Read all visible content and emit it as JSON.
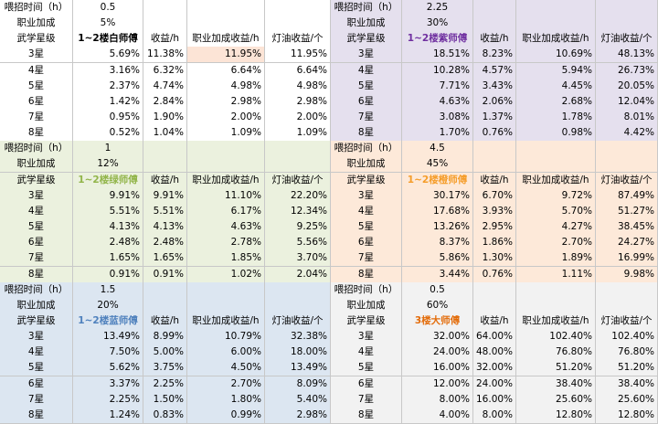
{
  "blocks": [
    {
      "time_label": "喂招时间（h）",
      "time": "0.5",
      "bonus_label": "职业加成",
      "bonus": "5%",
      "headers": [
        "武学星级",
        "1~2楼白师傅",
        "收益/h",
        "职业加成收益/h",
        "灯油收益/个"
      ],
      "rows": [
        [
          "3星",
          "5.69%",
          "11.38%",
          "11.95%",
          "11.95%"
        ],
        [
          "4星",
          "3.16%",
          "6.32%",
          "6.64%",
          "6.64%"
        ],
        [
          "5星",
          "2.37%",
          "4.74%",
          "4.98%",
          "4.98%"
        ],
        [
          "6星",
          "1.42%",
          "2.84%",
          "2.98%",
          "2.98%"
        ],
        [
          "7星",
          "0.95%",
          "1.90%",
          "2.00%",
          "2.00%"
        ],
        [
          "8星",
          "0.52%",
          "1.04%",
          "1.09%",
          "1.09%"
        ]
      ]
    },
    {
      "time_label": "喂招时间（h）",
      "time": "2.25",
      "bonus_label": "职业加成",
      "bonus": "30%",
      "headers": [
        "武学星级",
        "1~2楼紫师傅",
        "收益/h",
        "职业加成收益/h",
        "灯油收益/个"
      ],
      "rows": [
        [
          "3星",
          "18.51%",
          "8.23%",
          "10.69%",
          "48.13%"
        ],
        [
          "4星",
          "10.28%",
          "4.57%",
          "5.94%",
          "26.73%"
        ],
        [
          "5星",
          "7.71%",
          "3.43%",
          "4.45%",
          "20.05%"
        ],
        [
          "6星",
          "4.63%",
          "2.06%",
          "2.68%",
          "12.04%"
        ],
        [
          "7星",
          "3.08%",
          "1.37%",
          "1.78%",
          "8.01%"
        ],
        [
          "8星",
          "1.70%",
          "0.76%",
          "0.98%",
          "4.42%"
        ]
      ]
    },
    {
      "time_label": "喂招时间（h）",
      "time": "1",
      "bonus_label": "职业加成",
      "bonus": "12%",
      "headers": [
        "武学星级",
        "1~2楼绿师傅",
        "收益/h",
        "职业加成收益/h",
        "灯油收益/个"
      ],
      "rows": [
        [
          "3星",
          "9.91%",
          "9.91%",
          "11.10%",
          "22.20%"
        ],
        [
          "4星",
          "5.51%",
          "5.51%",
          "6.17%",
          "12.34%"
        ],
        [
          "5星",
          "4.13%",
          "4.13%",
          "4.63%",
          "9.25%"
        ],
        [
          "6星",
          "2.48%",
          "2.48%",
          "2.78%",
          "5.56%"
        ],
        [
          "7星",
          "1.65%",
          "1.65%",
          "1.85%",
          "3.70%"
        ],
        [
          "8星",
          "0.91%",
          "0.91%",
          "1.02%",
          "2.04%"
        ]
      ]
    },
    {
      "time_label": "喂招时间（h）",
      "time": "4.5",
      "bonus_label": "职业加成",
      "bonus": "45%",
      "headers": [
        "武学星级",
        "1~2楼橙师傅",
        "收益/h",
        "职业加成收益/h",
        "灯油收益/个"
      ],
      "rows": [
        [
          "3星",
          "30.17%",
          "6.70%",
          "9.72%",
          "87.49%"
        ],
        [
          "4星",
          "17.68%",
          "3.93%",
          "5.70%",
          "51.27%"
        ],
        [
          "5星",
          "13.26%",
          "2.95%",
          "4.27%",
          "38.45%"
        ],
        [
          "6星",
          "8.37%",
          "1.86%",
          "2.70%",
          "24.27%"
        ],
        [
          "7星",
          "5.86%",
          "1.30%",
          "1.89%",
          "16.99%"
        ],
        [
          "8星",
          "3.44%",
          "0.76%",
          "1.11%",
          "9.98%"
        ]
      ]
    },
    {
      "time_label": "喂招时间（h）",
      "time": "1.5",
      "bonus_label": "职业加成",
      "bonus": "20%",
      "headers": [
        "武学星级",
        "1~2楼蓝师傅",
        "收益/h",
        "职业加成收益/h",
        "灯油收益/个"
      ],
      "rows": [
        [
          "3星",
          "13.49%",
          "8.99%",
          "10.79%",
          "32.38%"
        ],
        [
          "4星",
          "7.50%",
          "5.00%",
          "6.00%",
          "18.00%"
        ],
        [
          "5星",
          "5.62%",
          "3.75%",
          "4.50%",
          "13.49%"
        ],
        [
          "6星",
          "3.37%",
          "2.25%",
          "2.70%",
          "8.09%"
        ],
        [
          "7星",
          "2.25%",
          "1.50%",
          "1.80%",
          "5.40%"
        ],
        [
          "8星",
          "1.24%",
          "0.83%",
          "0.99%",
          "2.98%"
        ]
      ]
    },
    {
      "time_label": "喂招时间（h）",
      "time": "0.5",
      "bonus_label": "职业加成",
      "bonus": "60%",
      "headers": [
        "武学星级",
        "3楼大师傅",
        "收益/h",
        "职业加成收益/h",
        "灯油收益/个"
      ],
      "rows": [
        [
          "3星",
          "32.00%",
          "64.00%",
          "102.40%",
          "102.40%"
        ],
        [
          "4星",
          "24.00%",
          "48.00%",
          "76.80%",
          "76.80%"
        ],
        [
          "5星",
          "16.00%",
          "32.00%",
          "51.20%",
          "51.20%"
        ],
        [
          "6星",
          "12.00%",
          "24.00%",
          "38.40%",
          "38.40%"
        ],
        [
          "7星",
          "8.00%",
          "16.00%",
          "25.60%",
          "25.60%"
        ],
        [
          "8星",
          "4.00%",
          "8.00%",
          "12.80%",
          "12.80%"
        ]
      ]
    }
  ]
}
